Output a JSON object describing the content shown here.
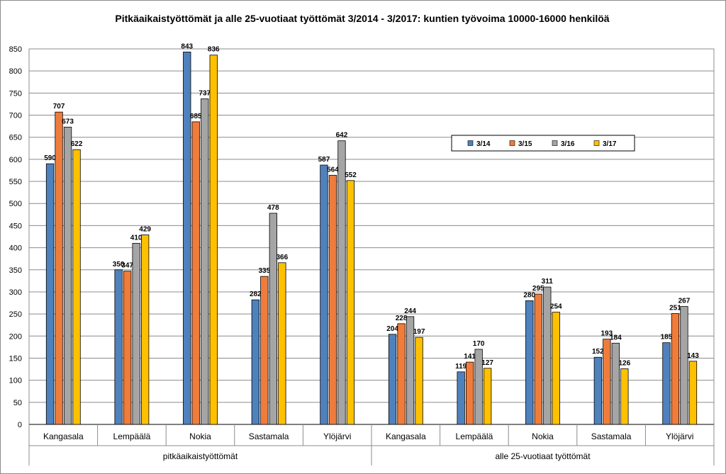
{
  "chart_data": {
    "type": "bar",
    "title": "Pitkäaikaistyöttömät ja alle 25-vuotiaat työttömät 3/2014 - 3/2017: kuntien työvoima 10000-16000 henkilöä",
    "xlabel": "",
    "ylabel": "",
    "ylim": [
      0,
      850
    ],
    "yticks": [
      0,
      50,
      100,
      150,
      200,
      250,
      300,
      350,
      400,
      450,
      500,
      550,
      600,
      650,
      700,
      750,
      800,
      850
    ],
    "grid": true,
    "legend_position": "right-middle",
    "groups": [
      {
        "label": "pitkäaikaistyöttömät",
        "categories": [
          "Kangasala",
          "Lempäälä",
          "Nokia",
          "Sastamala",
          "Ylöjärvi"
        ]
      },
      {
        "label": "alle 25-vuotiaat työttömät",
        "categories": [
          "Kangasala",
          "Lempäälä",
          "Nokia",
          "Sastamala",
          "Ylöjärvi"
        ]
      }
    ],
    "categories": [
      "Kangasala",
      "Lempäälä",
      "Nokia",
      "Sastamala",
      "Ylöjärvi",
      "Kangasala",
      "Lempäälä",
      "Nokia",
      "Sastamala",
      "Ylöjärvi"
    ],
    "series": [
      {
        "name": "3/14",
        "color": "#4f81bd",
        "values": [
          590,
          350,
          843,
          282,
          587,
          204,
          119,
          280,
          152,
          185
        ]
      },
      {
        "name": "3/15",
        "color": "#f07c3c",
        "values": [
          707,
          347,
          685,
          335,
          564,
          228,
          141,
          295,
          193,
          251
        ]
      },
      {
        "name": "3/16",
        "color": "#a5a5a5",
        "values": [
          673,
          410,
          737,
          478,
          642,
          244,
          170,
          311,
          184,
          267
        ]
      },
      {
        "name": "3/17",
        "color": "#ffc000",
        "values": [
          622,
          429,
          836,
          366,
          552,
          197,
          127,
          254,
          126,
          143
        ]
      }
    ]
  }
}
